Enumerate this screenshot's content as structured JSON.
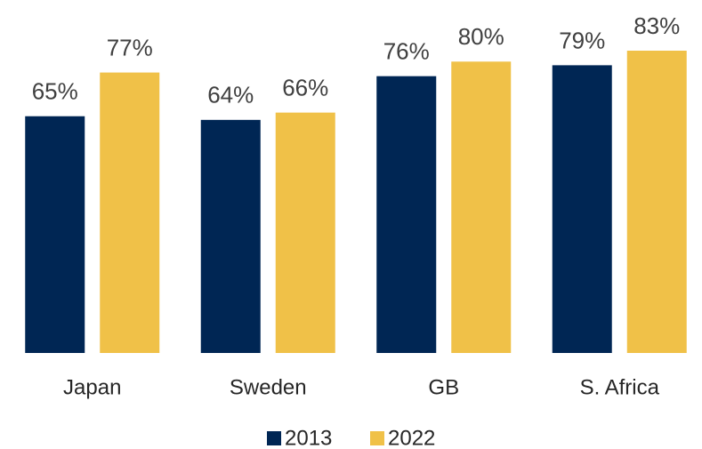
{
  "chart_data": {
    "type": "bar",
    "categories": [
      "Japan",
      "Sweden",
      "GB",
      "S. Africa"
    ],
    "series": [
      {
        "name": "2013",
        "color": "#002654",
        "values": [
          65,
          64,
          76,
          79
        ],
        "value_labels": [
          "65%",
          "64%",
          "76%",
          "79%"
        ]
      },
      {
        "name": "2022",
        "color": "#f0c148",
        "values": [
          77,
          66,
          80,
          83
        ],
        "value_labels": [
          "77%",
          "66%",
          "80%",
          "83%"
        ]
      }
    ],
    "legend": "bottom"
  }
}
